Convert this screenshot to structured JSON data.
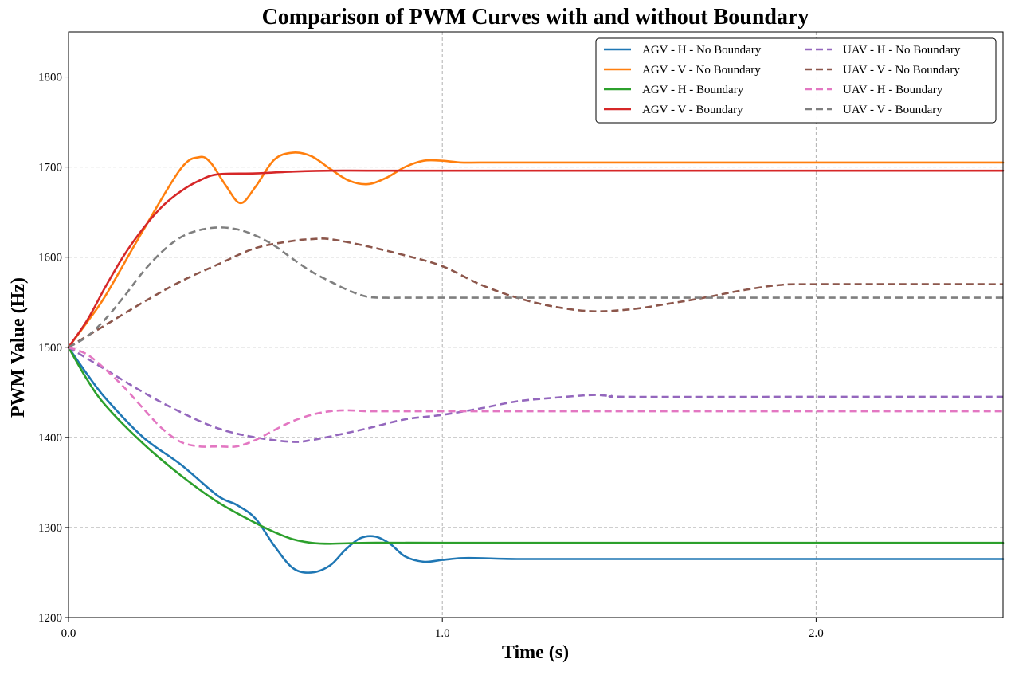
{
  "chart_data": {
    "type": "line",
    "title": "Comparison of PWM Curves with and without Boundary",
    "xlabel": "Time (s)",
    "ylabel": "PWM Value (Hz)",
    "xlim": [
      0,
      2.5
    ],
    "ylim": [
      1200,
      1850
    ],
    "xticks": [
      0.0,
      1.0,
      2.0
    ],
    "xtick_labels": [
      "0.0",
      "1.0",
      "2.0"
    ],
    "yticks": [
      1200,
      1300,
      1400,
      1500,
      1600,
      1700,
      1800
    ],
    "ytick_labels": [
      "1200",
      "1300",
      "1400",
      "1500",
      "1600",
      "1700",
      "1800"
    ],
    "grid": true,
    "legend_position": "top-right",
    "legend_columns": 2,
    "series": [
      {
        "name": "AGV - H - No Boundary",
        "color": "#1f77b4",
        "dash": "solid",
        "x": [
          0,
          0.05,
          0.1,
          0.2,
          0.3,
          0.4,
          0.45,
          0.5,
          0.55,
          0.6,
          0.65,
          0.7,
          0.74,
          0.78,
          0.82,
          0.86,
          0.9,
          0.95,
          1.0,
          1.05,
          1.1,
          1.2,
          1.4,
          1.7,
          2.0,
          2.5
        ],
        "y": [
          1500,
          1470,
          1443,
          1400,
          1370,
          1335,
          1325,
          1310,
          1280,
          1255,
          1250,
          1258,
          1275,
          1288,
          1290,
          1282,
          1268,
          1262,
          1264,
          1266,
          1266,
          1265,
          1265,
          1265,
          1265,
          1265
        ]
      },
      {
        "name": "AGV - V - No Boundary",
        "color": "#ff7f0e",
        "dash": "solid",
        "x": [
          0,
          0.05,
          0.1,
          0.2,
          0.3,
          0.35,
          0.38,
          0.42,
          0.46,
          0.5,
          0.55,
          0.6,
          0.65,
          0.7,
          0.75,
          0.8,
          0.85,
          0.9,
          0.95,
          1.0,
          1.05,
          1.1,
          1.2,
          1.5,
          2.0,
          2.5
        ],
        "y": [
          1500,
          1528,
          1558,
          1630,
          1698,
          1711,
          1705,
          1680,
          1660,
          1678,
          1708,
          1716,
          1712,
          1698,
          1685,
          1681,
          1688,
          1700,
          1707,
          1707,
          1705,
          1705,
          1705,
          1705,
          1705,
          1705
        ]
      },
      {
        "name": "AGV - H - Boundary",
        "color": "#2ca02c",
        "dash": "solid",
        "x": [
          0,
          0.05,
          0.1,
          0.2,
          0.3,
          0.4,
          0.5,
          0.55,
          0.6,
          0.65,
          0.7,
          0.8,
          1.0,
          1.5,
          2.0,
          2.5
        ],
        "y": [
          1500,
          1464,
          1435,
          1393,
          1358,
          1328,
          1305,
          1295,
          1287,
          1283,
          1282,
          1283,
          1283,
          1283,
          1283,
          1283
        ]
      },
      {
        "name": "AGV - V - Boundary",
        "color": "#d62728",
        "dash": "solid",
        "x": [
          0,
          0.05,
          0.1,
          0.15,
          0.2,
          0.25,
          0.3,
          0.35,
          0.4,
          0.5,
          0.6,
          0.7,
          0.8,
          1.0,
          1.5,
          2.0,
          2.5
        ],
        "y": [
          1500,
          1530,
          1568,
          1603,
          1632,
          1656,
          1673,
          1685,
          1692,
          1693,
          1695,
          1696,
          1696,
          1696,
          1696,
          1696,
          1696
        ]
      },
      {
        "name": "UAV - H - No Boundary",
        "color": "#9467bd",
        "dash": "dashed",
        "x": [
          0,
          0.1,
          0.2,
          0.3,
          0.4,
          0.5,
          0.6,
          0.65,
          0.7,
          0.8,
          0.9,
          1.0,
          1.1,
          1.2,
          1.3,
          1.4,
          1.45,
          1.5,
          2.0,
          2.5
        ],
        "y": [
          1500,
          1475,
          1450,
          1428,
          1410,
          1400,
          1395,
          1397,
          1401,
          1410,
          1420,
          1425,
          1432,
          1440,
          1444,
          1447,
          1446,
          1445,
          1445,
          1445
        ]
      },
      {
        "name": "UAV - V - No Boundary",
        "color": "#8c564b",
        "dash": "dashed",
        "x": [
          0,
          0.1,
          0.2,
          0.3,
          0.4,
          0.5,
          0.6,
          0.65,
          0.7,
          0.8,
          0.9,
          1.0,
          1.1,
          1.2,
          1.3,
          1.4,
          1.5,
          1.6,
          1.7,
          1.8,
          1.9,
          2.0,
          2.5
        ],
        "y": [
          1500,
          1525,
          1550,
          1573,
          1592,
          1610,
          1618,
          1620,
          1620,
          1612,
          1602,
          1590,
          1570,
          1555,
          1545,
          1540,
          1542,
          1548,
          1555,
          1563,
          1569,
          1570,
          1570
        ]
      },
      {
        "name": "UAV - H - Boundary",
        "color": "#e377c2",
        "dash": "dashed",
        "x": [
          0,
          0.05,
          0.1,
          0.15,
          0.2,
          0.25,
          0.3,
          0.35,
          0.4,
          0.45,
          0.5,
          0.55,
          0.6,
          0.65,
          0.7,
          0.75,
          0.8,
          0.9,
          1.0,
          1.5,
          2.0,
          2.5
        ],
        "y": [
          1500,
          1492,
          1475,
          1455,
          1432,
          1410,
          1395,
          1390,
          1390,
          1390,
          1397,
          1408,
          1418,
          1425,
          1429,
          1430,
          1429,
          1429,
          1429,
          1429,
          1429,
          1429
        ]
      },
      {
        "name": "UAV - V - Boundary",
        "color": "#7f7f7f",
        "dash": "dashed",
        "x": [
          0,
          0.05,
          0.1,
          0.15,
          0.2,
          0.25,
          0.3,
          0.35,
          0.4,
          0.45,
          0.5,
          0.55,
          0.6,
          0.65,
          0.7,
          0.75,
          0.8,
          0.85,
          0.9,
          1.0,
          1.5,
          2.0,
          2.5
        ],
        "y": [
          1500,
          1512,
          1532,
          1557,
          1584,
          1606,
          1622,
          1630,
          1633,
          1631,
          1624,
          1613,
          1598,
          1584,
          1573,
          1563,
          1556,
          1555,
          1555,
          1555,
          1555,
          1555,
          1555
        ]
      }
    ]
  }
}
